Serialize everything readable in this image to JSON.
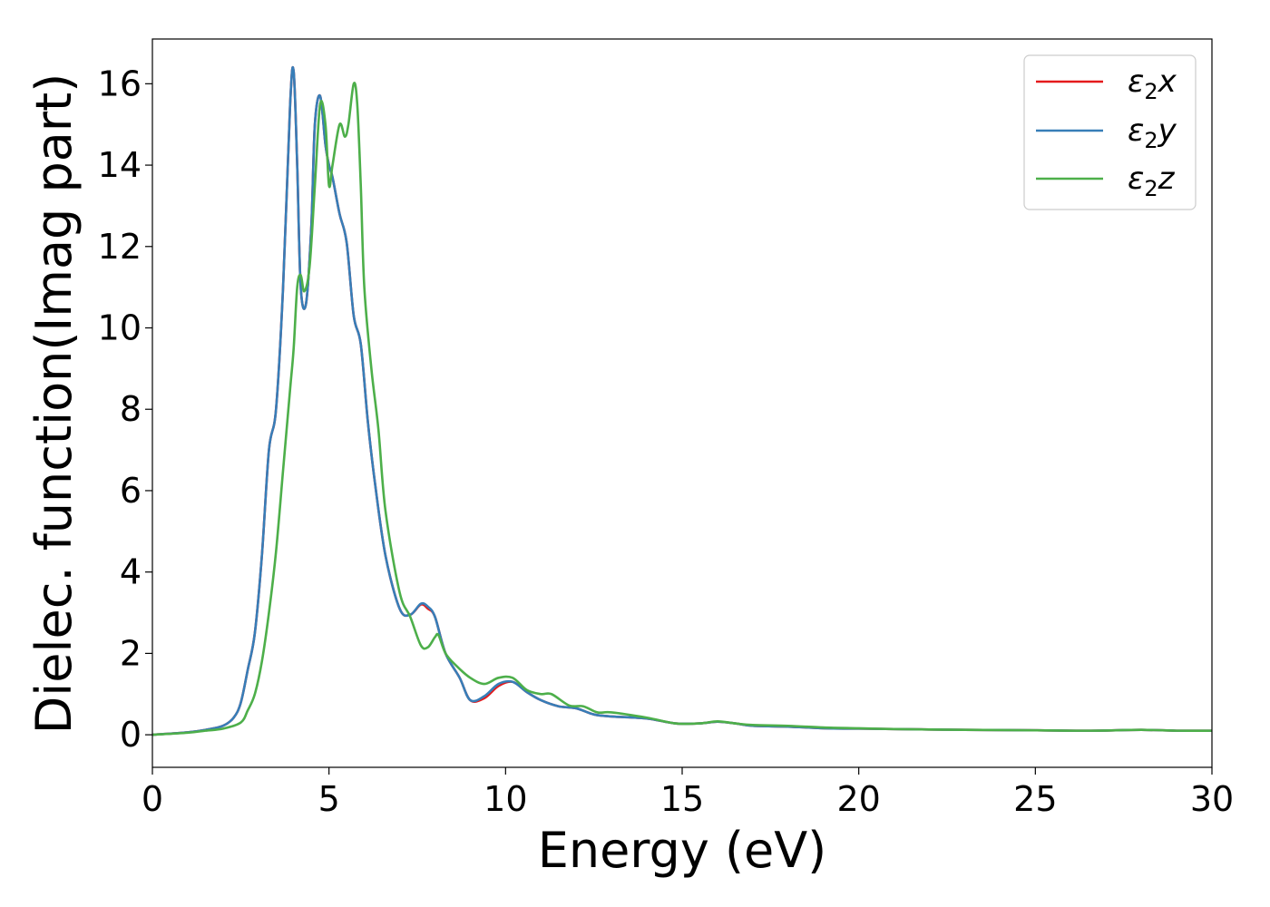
{
  "chart_data": {
    "type": "line",
    "title": "",
    "xlabel": "Energy (eV)",
    "ylabel": "Dielec. function(Imag part)",
    "xlim": [
      0,
      30
    ],
    "ylim": [
      -0.8,
      17.1
    ],
    "xticks": [
      0,
      5,
      10,
      15,
      20,
      25,
      30
    ],
    "yticks": [
      0,
      2,
      4,
      6,
      8,
      10,
      12,
      14,
      16
    ],
    "grid": false,
    "legend_position": "top-right",
    "series": [
      {
        "name": "ε₂x",
        "legend_base": "ε",
        "legend_sub": "2",
        "legend_var": "x",
        "color": "#e41a1c",
        "x": [
          0,
          1,
          1.5,
          2,
          2.3,
          2.5,
          2.7,
          2.9,
          3.1,
          3.3,
          3.5,
          3.7,
          3.9,
          4.0,
          4.1,
          4.2,
          4.35,
          4.5,
          4.6,
          4.75,
          4.9,
          5.0,
          5.1,
          5.3,
          5.5,
          5.7,
          5.9,
          6.1,
          6.3,
          6.6,
          7.0,
          7.3,
          7.6,
          7.8,
          8.0,
          8.3,
          8.7,
          9.0,
          9.4,
          9.8,
          10.2,
          10.6,
          11.0,
          11.5,
          12.0,
          12.5,
          13.0,
          14.0,
          14.8,
          15.5,
          16.0,
          16.5,
          17.0,
          18.0,
          19.0,
          20.0,
          21.0,
          22.0,
          23.0,
          25.0,
          26.5,
          28.0,
          29.0,
          30.0
        ],
        "values": [
          0,
          0.06,
          0.12,
          0.22,
          0.42,
          0.78,
          1.6,
          2.5,
          4.4,
          7.0,
          8.0,
          11.0,
          15.5,
          16.3,
          14.0,
          11.0,
          10.6,
          12.5,
          15.0,
          15.7,
          14.5,
          14.0,
          13.7,
          12.8,
          12.1,
          10.3,
          9.6,
          7.7,
          6.2,
          4.4,
          3.1,
          2.95,
          3.2,
          3.1,
          2.9,
          2.0,
          1.4,
          0.85,
          0.9,
          1.2,
          1.3,
          1.05,
          0.85,
          0.7,
          0.65,
          0.5,
          0.45,
          0.4,
          0.28,
          0.28,
          0.32,
          0.28,
          0.22,
          0.2,
          0.16,
          0.15,
          0.14,
          0.13,
          0.12,
          0.11,
          0.1,
          0.12,
          0.1,
          0.1
        ]
      },
      {
        "name": "ε₂y",
        "legend_base": "ε",
        "legend_sub": "2",
        "legend_var": "y",
        "color": "#377eb8",
        "x": [
          0,
          1,
          1.5,
          2,
          2.3,
          2.5,
          2.7,
          2.9,
          3.1,
          3.3,
          3.5,
          3.7,
          3.9,
          4.0,
          4.1,
          4.2,
          4.35,
          4.5,
          4.6,
          4.75,
          4.9,
          5.0,
          5.1,
          5.3,
          5.5,
          5.7,
          5.9,
          6.1,
          6.3,
          6.6,
          7.0,
          7.3,
          7.6,
          7.8,
          8.0,
          8.3,
          8.7,
          9.0,
          9.4,
          9.8,
          10.2,
          10.6,
          11.0,
          11.5,
          12.0,
          12.5,
          13.0,
          14.0,
          14.8,
          15.5,
          16.0,
          16.5,
          17.0,
          18.0,
          19.0,
          20.0,
          21.0,
          22.0,
          23.0,
          25.0,
          26.5,
          28.0,
          29.0,
          30.0
        ],
        "values": [
          0,
          0.06,
          0.12,
          0.22,
          0.42,
          0.78,
          1.6,
          2.5,
          4.4,
          7.0,
          8.0,
          11.0,
          15.5,
          16.3,
          14.0,
          11.0,
          10.6,
          12.5,
          15.0,
          15.7,
          14.5,
          14.0,
          13.7,
          12.8,
          12.1,
          10.3,
          9.6,
          7.7,
          6.2,
          4.4,
          3.1,
          2.95,
          3.22,
          3.15,
          2.9,
          2.0,
          1.4,
          0.85,
          0.95,
          1.25,
          1.3,
          1.05,
          0.85,
          0.7,
          0.65,
          0.5,
          0.45,
          0.4,
          0.28,
          0.28,
          0.32,
          0.28,
          0.22,
          0.2,
          0.16,
          0.15,
          0.14,
          0.13,
          0.12,
          0.11,
          0.1,
          0.12,
          0.1,
          0.1
        ]
      },
      {
        "name": "ε₂z",
        "legend_base": "ε",
        "legend_sub": "2",
        "legend_var": "z",
        "color": "#4daf4a",
        "x": [
          0,
          1,
          1.5,
          2,
          2.5,
          2.7,
          2.9,
          3.1,
          3.3,
          3.5,
          3.7,
          3.9,
          4.0,
          4.1,
          4.2,
          4.3,
          4.45,
          4.6,
          4.75,
          4.9,
          5.0,
          5.1,
          5.3,
          5.45,
          5.55,
          5.7,
          5.8,
          5.9,
          6.0,
          6.2,
          6.4,
          6.6,
          7.0,
          7.3,
          7.6,
          7.8,
          8.0,
          8.1,
          8.3,
          8.6,
          9.0,
          9.4,
          9.8,
          10.2,
          10.6,
          11.0,
          11.3,
          11.8,
          12.2,
          12.6,
          13.0,
          14.0,
          14.8,
          15.5,
          16.0,
          16.5,
          17.0,
          18.0,
          19.0,
          20.0,
          21.0,
          22.0,
          23.0,
          25.0,
          26.5,
          28.0,
          29.0,
          30.0
        ],
        "values": [
          0,
          0.05,
          0.1,
          0.15,
          0.3,
          0.6,
          1.0,
          1.8,
          3.0,
          4.5,
          6.5,
          8.5,
          9.5,
          11.0,
          11.3,
          10.9,
          11.5,
          13.5,
          15.5,
          15.0,
          13.5,
          14.0,
          15.0,
          14.7,
          15.0,
          16.0,
          15.5,
          13.5,
          11.0,
          9.0,
          7.5,
          5.5,
          3.5,
          2.9,
          2.2,
          2.15,
          2.4,
          2.45,
          2.0,
          1.7,
          1.4,
          1.25,
          1.4,
          1.4,
          1.1,
          1.0,
          1.0,
          0.72,
          0.7,
          0.55,
          0.55,
          0.42,
          0.28,
          0.28,
          0.33,
          0.28,
          0.24,
          0.22,
          0.18,
          0.16,
          0.14,
          0.13,
          0.12,
          0.11,
          0.1,
          0.12,
          0.1,
          0.1
        ]
      }
    ]
  }
}
